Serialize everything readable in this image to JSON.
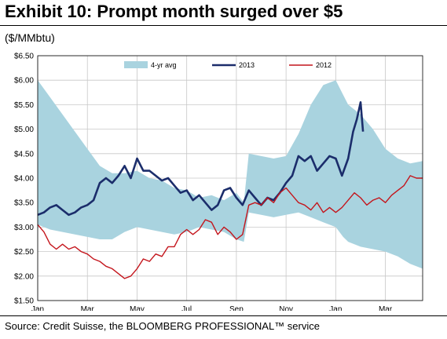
{
  "title": "Exhibit 10: Prompt month surged over $5",
  "unit_label": "($/MMbtu)",
  "source": "Source: Credit Suisse, the BLOOMBERG PROFESSIONAL™ service",
  "chart_data": {
    "type": "line",
    "ylim": [
      1.5,
      6.5
    ],
    "yticks": [
      "$1.50",
      "$2.00",
      "$2.50",
      "$3.00",
      "$3.50",
      "$4.00",
      "$4.50",
      "$5.00",
      "$5.50",
      "$6.00",
      "$6.50"
    ],
    "xticks": [
      "Jan",
      "Mar",
      "May",
      "Jul",
      "Sep",
      "Nov",
      "Jan",
      "Mar"
    ],
    "x_month_positions": [
      0,
      2,
      4,
      6,
      8,
      10,
      12,
      14
    ],
    "xlim": [
      0,
      15.5
    ],
    "grid": true,
    "legend_position": "top",
    "colors": {
      "avg_band": "#a9d3df",
      "series_2013": "#1b2d6b",
      "series_2012": "#c4151c"
    },
    "series": [
      {
        "name": "4-yr avg",
        "kind": "band",
        "x": [
          0,
          0.5,
          1,
          1.5,
          2,
          2.5,
          3,
          3.5,
          4,
          4.5,
          5,
          5.5,
          6,
          6.5,
          7,
          7.5,
          8,
          8.3,
          8.5,
          9,
          9.5,
          10,
          10.5,
          11,
          11.5,
          12,
          12.3,
          12.5,
          13,
          13.5,
          14,
          14.5,
          15,
          15.5
        ],
        "upper": [
          6.0,
          5.65,
          5.3,
          4.95,
          4.6,
          4.25,
          4.1,
          4.1,
          4.15,
          4.0,
          3.95,
          3.8,
          3.75,
          3.6,
          3.65,
          3.55,
          3.7,
          3.5,
          4.5,
          4.45,
          4.4,
          4.45,
          4.9,
          5.5,
          5.9,
          6.0,
          5.7,
          5.5,
          5.3,
          5.0,
          4.6,
          4.4,
          4.3,
          4.35
        ],
        "lower": [
          3.05,
          2.95,
          2.9,
          2.85,
          2.8,
          2.75,
          2.75,
          2.9,
          3.0,
          2.95,
          2.9,
          2.85,
          2.9,
          3.0,
          2.95,
          2.9,
          2.75,
          2.7,
          3.3,
          3.25,
          3.2,
          3.25,
          3.3,
          3.2,
          3.1,
          3.0,
          2.8,
          2.7,
          2.6,
          2.55,
          2.5,
          2.4,
          2.25,
          2.15
        ]
      },
      {
        "name": "2013",
        "x": [
          0,
          0.25,
          0.5,
          0.75,
          1,
          1.25,
          1.5,
          1.75,
          2,
          2.25,
          2.5,
          2.75,
          3,
          3.25,
          3.5,
          3.75,
          4,
          4.25,
          4.5,
          4.75,
          5,
          5.25,
          5.5,
          5.75,
          6,
          6.25,
          6.5,
          6.75,
          7,
          7.25,
          7.5,
          7.75,
          8,
          8.25,
          8.5,
          8.75,
          9,
          9.25,
          9.5,
          9.75,
          10,
          10.25,
          10.5,
          10.75,
          11,
          11.25,
          11.5,
          11.75,
          12,
          12.25,
          12.5,
          12.7,
          12.85,
          13.0,
          13.1
        ],
        "values": [
          3.25,
          3.3,
          3.4,
          3.45,
          3.35,
          3.25,
          3.3,
          3.4,
          3.45,
          3.55,
          3.9,
          4.0,
          3.9,
          4.05,
          4.25,
          4.0,
          4.4,
          4.15,
          4.15,
          4.05,
          3.95,
          4.0,
          3.85,
          3.7,
          3.75,
          3.55,
          3.65,
          3.5,
          3.35,
          3.45,
          3.75,
          3.8,
          3.6,
          3.45,
          3.75,
          3.6,
          3.45,
          3.6,
          3.55,
          3.7,
          3.9,
          4.05,
          4.45,
          4.35,
          4.45,
          4.15,
          4.3,
          4.45,
          4.4,
          4.05,
          4.4,
          4.95,
          5.2,
          5.55,
          4.95
        ]
      },
      {
        "name": "2012",
        "x": [
          0,
          0.25,
          0.5,
          0.75,
          1,
          1.25,
          1.5,
          1.75,
          2,
          2.25,
          2.5,
          2.75,
          3,
          3.25,
          3.5,
          3.75,
          4,
          4.25,
          4.5,
          4.75,
          5,
          5.25,
          5.5,
          5.75,
          6,
          6.25,
          6.5,
          6.75,
          7,
          7.25,
          7.5,
          7.75,
          8,
          8.25,
          8.5,
          8.75,
          9,
          9.25,
          9.5,
          9.75,
          10,
          10.25,
          10.5,
          10.75,
          11,
          11.25,
          11.5,
          11.75,
          12,
          12.25,
          12.5,
          12.75,
          13,
          13.25,
          13.5,
          13.75,
          14,
          14.25,
          14.5,
          14.75,
          15,
          15.25,
          15.5
        ],
        "values": [
          3.05,
          2.9,
          2.65,
          2.55,
          2.65,
          2.55,
          2.6,
          2.5,
          2.45,
          2.35,
          2.3,
          2.2,
          2.15,
          2.05,
          1.95,
          2.0,
          2.15,
          2.35,
          2.3,
          2.45,
          2.4,
          2.6,
          2.6,
          2.85,
          2.95,
          2.85,
          2.95,
          3.15,
          3.1,
          2.85,
          3.0,
          2.9,
          2.75,
          2.85,
          3.45,
          3.5,
          3.45,
          3.6,
          3.5,
          3.7,
          3.8,
          3.65,
          3.5,
          3.45,
          3.35,
          3.5,
          3.3,
          3.4,
          3.3,
          3.4,
          3.55,
          3.7,
          3.6,
          3.45,
          3.55,
          3.6,
          3.5,
          3.65,
          3.75,
          3.85,
          4.05,
          4.0,
          4.0
        ]
      }
    ]
  }
}
